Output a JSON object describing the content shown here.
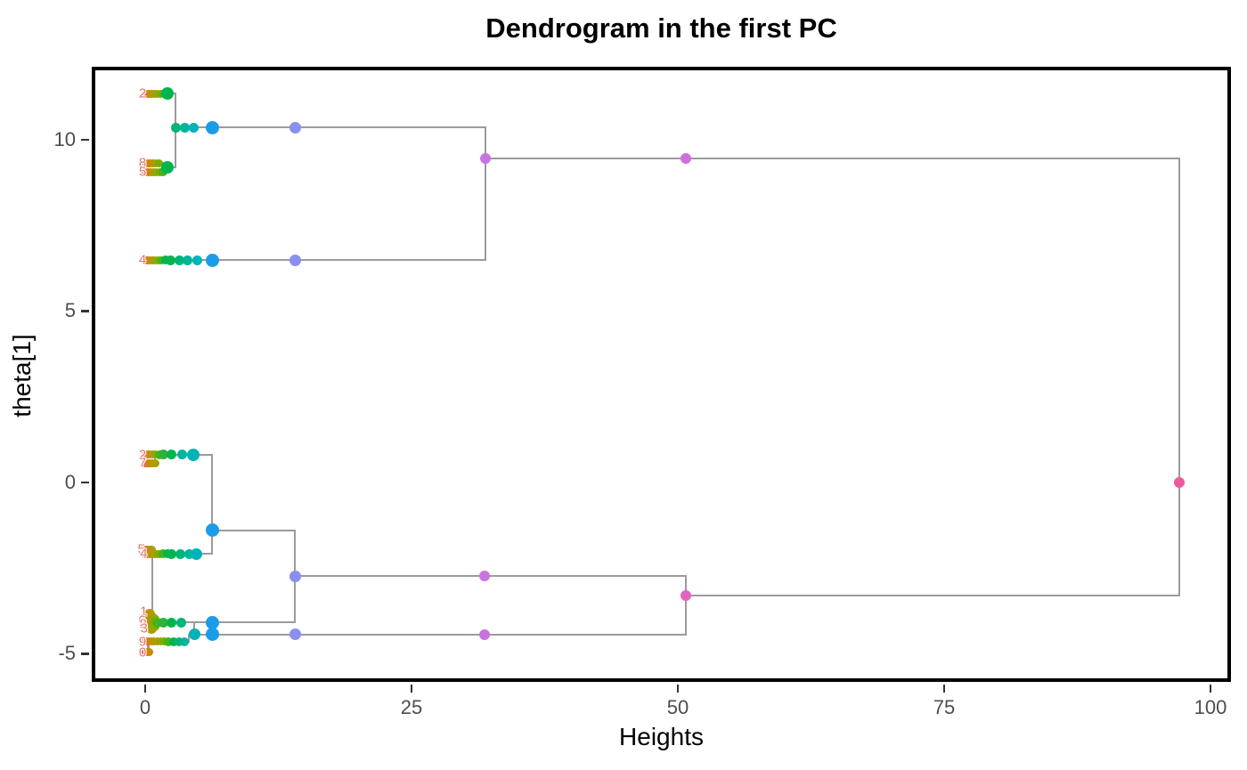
{
  "title": "Dendrogram in the first PC",
  "chart_data": {
    "type": "scatter",
    "subtype": "dendrogram",
    "title": "Dendrogram in the first PC",
    "xlabel": "Heights",
    "ylabel": "theta[1]",
    "x_ticks": [
      0,
      25,
      50,
      75,
      100
    ],
    "y_ticks": [
      -5,
      0,
      5,
      10
    ],
    "xlim": [
      -5.02,
      101.92
    ],
    "ylim": [
      -5.82,
      12.13
    ],
    "grid": false,
    "legend": "none",
    "line_color": "#9b9b9b",
    "line_width": 2.5,
    "label_color": "#e4766d",
    "segments": [
      [
        -0.25,
        11.35,
        2.84,
        11.35
      ],
      [
        -0.25,
        9.32,
        2.26,
        9.32
      ],
      [
        -0.25,
        9.06,
        2.26,
        9.06
      ],
      [
        2.26,
        9.32,
        2.26,
        9.06
      ],
      [
        2.26,
        9.19,
        2.84,
        9.19
      ],
      [
        2.84,
        11.35,
        2.84,
        9.19
      ],
      [
        2.84,
        10.36,
        31.94,
        10.36
      ],
      [
        -0.25,
        6.49,
        31.94,
        6.49
      ],
      [
        31.94,
        10.36,
        31.94,
        6.49
      ],
      [
        31.94,
        9.45,
        97.07,
        9.45
      ],
      [
        -0.25,
        0.81,
        6.27,
        0.81
      ],
      [
        -0.25,
        0.57,
        0.9,
        0.57
      ],
      [
        0.9,
        0.81,
        0.9,
        0.57
      ],
      [
        6.27,
        0.81,
        6.27,
        -2.08
      ],
      [
        6.27,
        -1.4,
        14.05,
        -1.4
      ],
      [
        -0.25,
        -1.95,
        0.67,
        -1.95
      ],
      [
        -0.25,
        -2.08,
        6.27,
        -2.08
      ],
      [
        0.67,
        -1.95,
        0.67,
        -4.08
      ],
      [
        -0.25,
        -4.08,
        14.05,
        -4.08
      ],
      [
        4.6,
        -4.08,
        4.6,
        -4.44
      ],
      [
        4.1,
        -4.44,
        50.75,
        -4.44
      ],
      [
        -0.25,
        -4.65,
        4.1,
        -4.65
      ],
      [
        4.1,
        -4.44,
        4.1,
        -4.65
      ],
      [
        -0.25,
        -4.96,
        0.3,
        -4.96
      ],
      [
        0.3,
        -4.65,
        0.3,
        -4.96
      ],
      [
        14.05,
        -1.4,
        14.05,
        -4.08
      ],
      [
        14.05,
        -2.73,
        50.75,
        -2.73
      ],
      [
        50.75,
        -2.73,
        50.75,
        -4.44
      ],
      [
        50.75,
        -3.3,
        97.07,
        -3.3
      ],
      [
        97.07,
        9.45,
        97.07,
        -3.3
      ]
    ],
    "points": [
      [
        0.05,
        11.35,
        "#e35f61",
        4.5
      ],
      [
        0.25,
        11.35,
        "#db7430",
        4.5
      ],
      [
        0.45,
        11.35,
        "#cd8605",
        4.5
      ],
      [
        0.65,
        11.35,
        "#bd9300",
        4.5
      ],
      [
        0.9,
        11.35,
        "#ab9e00",
        4.5
      ],
      [
        1.15,
        11.35,
        "#94a700",
        4.5
      ],
      [
        1.45,
        11.35,
        "#76ae00",
        4.5
      ],
      [
        1.8,
        11.35,
        "#45b31c",
        5
      ],
      [
        2.1,
        11.35,
        "#00b54e",
        7
      ],
      [
        0.05,
        9.32,
        "#e35f61",
        4.5
      ],
      [
        0.25,
        9.32,
        "#db7430",
        4.5
      ],
      [
        0.48,
        9.32,
        "#cd8605",
        4.5
      ],
      [
        0.72,
        9.32,
        "#bd9300",
        4.5
      ],
      [
        1.0,
        9.32,
        "#ab9e00",
        4.5
      ],
      [
        1.3,
        9.32,
        "#76ae00",
        4.5
      ],
      [
        0.05,
        9.06,
        "#e35f61",
        4.5
      ],
      [
        0.28,
        9.06,
        "#db7430",
        4.5
      ],
      [
        0.52,
        9.06,
        "#cd8605",
        4.5
      ],
      [
        0.78,
        9.06,
        "#ab9e00",
        4.5
      ],
      [
        1.05,
        9.06,
        "#94a700",
        4.5
      ],
      [
        1.35,
        9.06,
        "#76ae00",
        4.5
      ],
      [
        1.65,
        9.06,
        "#45b31c",
        5
      ],
      [
        2.05,
        9.19,
        "#00b54e",
        7
      ],
      [
        2.9,
        10.36,
        "#00b578",
        5.5
      ],
      [
        3.7,
        10.36,
        "#00b59a",
        5.5
      ],
      [
        4.55,
        10.36,
        "#00b3b6",
        5.5
      ],
      [
        6.27,
        10.36,
        "#1b9ce8",
        7.5
      ],
      [
        14.05,
        10.36,
        "#8a8ff0",
        6.5
      ],
      [
        0.05,
        6.49,
        "#e35f61",
        4.5
      ],
      [
        0.22,
        6.49,
        "#db7430",
        4.5
      ],
      [
        0.4,
        6.49,
        "#cd8605",
        4.5
      ],
      [
        0.6,
        6.49,
        "#bd9300",
        4.5
      ],
      [
        0.8,
        6.49,
        "#ab9e00",
        4.5
      ],
      [
        1.02,
        6.49,
        "#94a700",
        4.5
      ],
      [
        1.28,
        6.49,
        "#76ae00",
        4.5
      ],
      [
        1.58,
        6.49,
        "#45b31c",
        4.5
      ],
      [
        1.9,
        6.49,
        "#00b54e",
        5
      ],
      [
        2.4,
        6.49,
        "#00b54e",
        5.5
      ],
      [
        3.2,
        6.49,
        "#00b578",
        5.5
      ],
      [
        4.0,
        6.49,
        "#00b59a",
        5.5
      ],
      [
        4.85,
        6.49,
        "#00b3b6",
        5.5
      ],
      [
        6.27,
        6.49,
        "#1b9ce8",
        7.5
      ],
      [
        14.05,
        6.49,
        "#8a8ff0",
        6.5
      ],
      [
        31.94,
        9.45,
        "#c873e0",
        6
      ],
      [
        50.75,
        9.45,
        "#cf70dd",
        6
      ],
      [
        0.05,
        0.81,
        "#e35f61",
        4.5
      ],
      [
        0.25,
        0.81,
        "#db7430",
        4.5
      ],
      [
        0.48,
        0.81,
        "#bd9300",
        4.5
      ],
      [
        0.72,
        0.81,
        "#ab9e00",
        4.5
      ],
      [
        0.95,
        0.81,
        "#94a700",
        4.5
      ],
      [
        1.3,
        0.81,
        "#45b31c",
        5
      ],
      [
        1.7,
        0.81,
        "#2db33b",
        5.5
      ],
      [
        2.5,
        0.81,
        "#00b54e",
        5.5
      ],
      [
        3.5,
        0.81,
        "#00b59a",
        5.5
      ],
      [
        4.52,
        0.81,
        "#00b3b6",
        7
      ],
      [
        0.05,
        0.57,
        "#e35f61",
        4.5
      ],
      [
        0.25,
        0.57,
        "#db7430",
        4.5
      ],
      [
        0.48,
        0.57,
        "#cd8605",
        4.5
      ],
      [
        0.72,
        0.57,
        "#bd9300",
        4.5
      ],
      [
        0.95,
        0.57,
        "#ab9e00",
        4.5
      ],
      [
        6.27,
        -1.4,
        "#1b9ce8",
        7.5
      ],
      [
        0.05,
        -1.95,
        "#e35f61",
        4.5
      ],
      [
        0.22,
        -1.95,
        "#db7430",
        4.5
      ],
      [
        0.42,
        -1.95,
        "#bd9300",
        4.5
      ],
      [
        0.62,
        -1.95,
        "#ab9e00",
        4.5
      ],
      [
        0.05,
        -2.08,
        "#e35f61",
        4.5
      ],
      [
        0.22,
        -2.08,
        "#db7430",
        4.5
      ],
      [
        0.42,
        -2.08,
        "#cd8605",
        4.5
      ],
      [
        0.62,
        -2.08,
        "#bd9300",
        4.5
      ],
      [
        0.85,
        -2.08,
        "#ab9e00",
        4.5
      ],
      [
        1.1,
        -2.08,
        "#94a700",
        4.5
      ],
      [
        1.38,
        -2.08,
        "#76ae00",
        4.5
      ],
      [
        1.7,
        -2.08,
        "#45b31c",
        5
      ],
      [
        2.05,
        -2.08,
        "#00b54e",
        5
      ],
      [
        2.45,
        -2.08,
        "#00b54e",
        5.5
      ],
      [
        3.3,
        -2.08,
        "#00b578",
        5.5
      ],
      [
        4.1,
        -2.08,
        "#00b59a",
        5.5
      ],
      [
        4.77,
        -2.08,
        "#00b3b6",
        6.5
      ],
      [
        0.15,
        -3.9,
        "#cd8605",
        6
      ],
      [
        0.4,
        -3.84,
        "#bd9300",
        6
      ],
      [
        0.6,
        -3.95,
        "#ab9e00",
        6.5
      ],
      [
        0.28,
        -4.05,
        "#c08f00",
        7
      ],
      [
        0.55,
        -4.12,
        "#ab9e00",
        7
      ],
      [
        0.8,
        -4.0,
        "#94a700",
        6
      ],
      [
        0.95,
        -4.1,
        "#76ae00",
        6
      ],
      [
        0.35,
        -4.22,
        "#cd8605",
        6
      ],
      [
        0.62,
        -4.27,
        "#ab9e00",
        6
      ],
      [
        0.85,
        -4.2,
        "#94a700",
        5.5
      ],
      [
        1.15,
        -4.1,
        "#45b31c",
        5.5
      ],
      [
        1.7,
        -4.08,
        "#2db33b",
        5.5
      ],
      [
        2.5,
        -4.08,
        "#00b54e",
        5.5
      ],
      [
        3.35,
        -4.08,
        "#00b578",
        5.5
      ],
      [
        6.27,
        -4.08,
        "#1b9ce8",
        7.5
      ],
      [
        4.6,
        -4.44,
        "#00b3b6",
        6.5
      ],
      [
        6.27,
        -4.44,
        "#1b9ce8",
        7.5
      ],
      [
        14.05,
        -4.44,
        "#8a8ff0",
        6.5
      ],
      [
        31.86,
        -4.44,
        "#c873e0",
        6
      ],
      [
        0.05,
        -4.65,
        "#e35f61",
        4.5
      ],
      [
        0.3,
        -4.65,
        "#db7430",
        4.5
      ],
      [
        0.55,
        -4.65,
        "#cd8605",
        4.5
      ],
      [
        0.8,
        -4.65,
        "#bd9300",
        4.5
      ],
      [
        1.1,
        -4.65,
        "#ab9e00",
        4.5
      ],
      [
        1.45,
        -4.65,
        "#94a700",
        4.5
      ],
      [
        1.8,
        -4.65,
        "#76ae00",
        4.5
      ],
      [
        2.2,
        -4.65,
        "#45b31c",
        5
      ],
      [
        2.7,
        -4.65,
        "#00b54e",
        5
      ],
      [
        3.2,
        -4.65,
        "#00b578",
        5
      ],
      [
        3.7,
        -4.65,
        "#00b59a",
        5
      ],
      [
        0.05,
        -4.96,
        "#e35f61",
        4.5
      ],
      [
        0.2,
        -4.96,
        "#db7430",
        4.5
      ],
      [
        0.38,
        -4.96,
        "#cd8605",
        4.5
      ],
      [
        14.05,
        -2.73,
        "#8a8ff0",
        6.5
      ],
      [
        31.86,
        -2.73,
        "#c873e0",
        6
      ],
      [
        50.75,
        -3.3,
        "#e463c1",
        6
      ],
      [
        97.07,
        0,
        "#ee5a9e",
        6
      ]
    ],
    "leaf_labels": [
      [
        "2",
        -0.25,
        11.35
      ],
      [
        "8",
        -0.25,
        9.32
      ],
      [
        "5",
        -0.25,
        9.06
      ],
      [
        "4",
        -0.25,
        6.49
      ],
      [
        "2",
        -0.25,
        0.81
      ],
      [
        "7",
        -0.25,
        0.57
      ],
      [
        "5",
        -0.35,
        -1.95
      ],
      [
        "4",
        -0.15,
        -2.08
      ],
      [
        "1",
        -0.15,
        -3.77
      ],
      [
        "6",
        -0.3,
        -4.03
      ],
      [
        "8",
        -0.2,
        -4.13
      ],
      [
        "3",
        -0.1,
        -4.26
      ],
      [
        "9",
        -0.25,
        -4.65
      ],
      [
        "0",
        -0.25,
        -4.96
      ]
    ]
  }
}
